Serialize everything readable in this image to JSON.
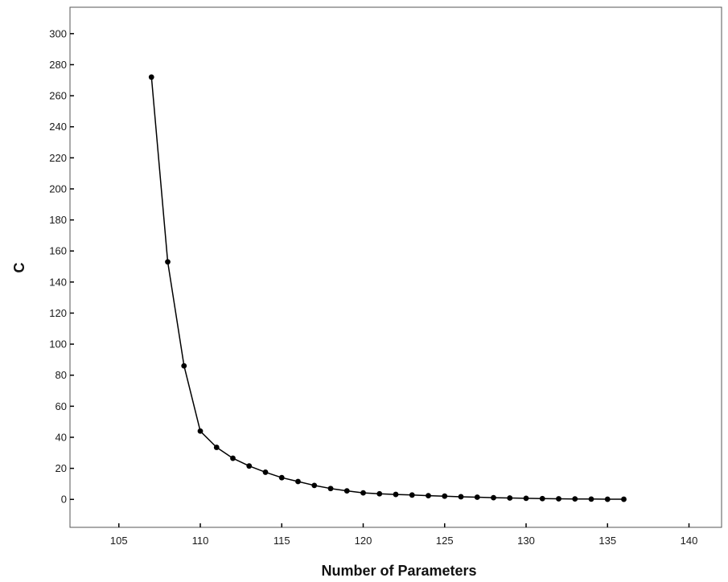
{
  "chart_data": {
    "type": "line",
    "title": "",
    "xlabel": "Number of  Parameters",
    "ylabel": "C",
    "xlim": [
      102,
      142
    ],
    "ylim": [
      -18,
      317
    ],
    "xticks": [
      105,
      110,
      115,
      120,
      125,
      130,
      135,
      140
    ],
    "yticks": [
      0,
      20,
      40,
      60,
      80,
      100,
      120,
      140,
      160,
      180,
      200,
      220,
      240,
      260,
      280,
      300
    ],
    "grid": false,
    "markers": true,
    "line_color": "#000000",
    "series": [
      {
        "x": [
          107,
          108,
          109,
          110,
          111,
          112,
          113,
          114,
          115,
          116,
          117,
          118,
          119,
          120,
          121,
          122,
          123,
          124,
          125,
          126,
          127,
          128,
          129,
          130,
          131,
          132,
          133,
          134,
          135,
          136
        ],
        "values": [
          272,
          153,
          86,
          44,
          33.5,
          26.5,
          21.5,
          17.5,
          14,
          11.5,
          9,
          7,
          5.5,
          4.2,
          3.6,
          3.2,
          2.8,
          2.4,
          2.1,
          1.7,
          1.4,
          1.1,
          0.9,
          0.7,
          0.5,
          0.4,
          0.3,
          0.2,
          0.1,
          0.1
        ]
      }
    ]
  }
}
